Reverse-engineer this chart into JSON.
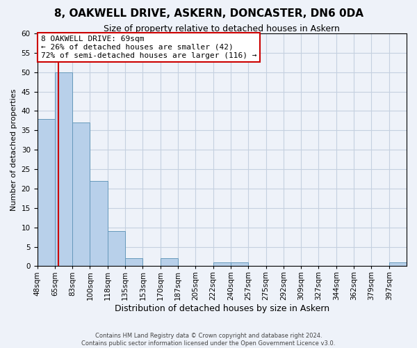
{
  "title": "8, OAKWELL DRIVE, ASKERN, DONCASTER, DN6 0DA",
  "subtitle": "Size of property relative to detached houses in Askern",
  "xlabel": "Distribution of detached houses by size in Askern",
  "ylabel": "Number of detached properties",
  "bins": [
    "48sqm",
    "65sqm",
    "83sqm",
    "100sqm",
    "118sqm",
    "135sqm",
    "153sqm",
    "170sqm",
    "187sqm",
    "205sqm",
    "222sqm",
    "240sqm",
    "257sqm",
    "275sqm",
    "292sqm",
    "309sqm",
    "327sqm",
    "344sqm",
    "362sqm",
    "379sqm",
    "397sqm"
  ],
  "bar_heights": [
    38,
    50,
    37,
    22,
    9,
    2,
    0,
    2,
    0,
    0,
    1,
    1,
    0,
    0,
    0,
    0,
    0,
    0,
    0,
    0,
    1
  ],
  "bar_color": "#b8d0ea",
  "bar_edge_color": "#6699bb",
  "vline_color": "#cc0000",
  "vline_x": 1.22,
  "annotation_box_text": "8 OAKWELL DRIVE: 69sqm\n← 26% of detached houses are smaller (42)\n72% of semi-detached houses are larger (116) →",
  "annotation_box_edge_color": "#cc0000",
  "ylim": [
    0,
    60
  ],
  "yticks": [
    0,
    5,
    10,
    15,
    20,
    25,
    30,
    35,
    40,
    45,
    50,
    55,
    60
  ],
  "footer_line1": "Contains HM Land Registry data © Crown copyright and database right 2024.",
  "footer_line2": "Contains public sector information licensed under the Open Government Licence v3.0.",
  "bg_color": "#eef2f9",
  "grid_color": "#c5d0e0",
  "title_fontsize": 11,
  "subtitle_fontsize": 9,
  "xlabel_fontsize": 9,
  "ylabel_fontsize": 8,
  "tick_fontsize": 7.5,
  "annot_fontsize": 8
}
